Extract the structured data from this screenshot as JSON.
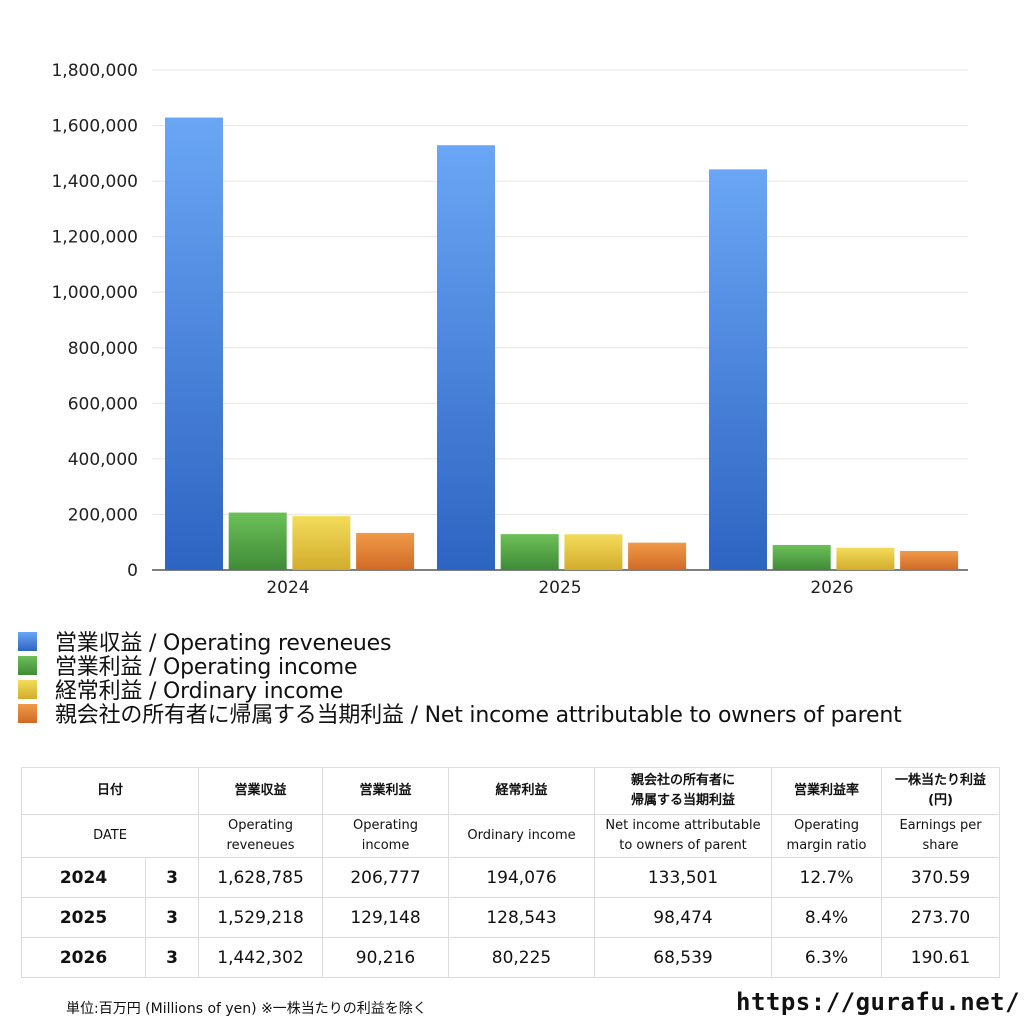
{
  "chart_data": {
    "type": "bar",
    "categories": [
      "2024",
      "2025",
      "2026"
    ],
    "ylim": [
      0,
      1800000
    ],
    "yticks": [
      "0",
      "200,000",
      "400,000",
      "600,000",
      "800,000",
      "1,000,000",
      "1,200,000",
      "1,400,000",
      "1,600,000",
      "1,800,000"
    ],
    "grid": true,
    "legend_position": "bottom",
    "series": [
      {
        "name": "営業収益 / Operating reveneues",
        "values": [
          1628785,
          1529218,
          1442302
        ],
        "color": "#4a86e8"
      },
      {
        "name": "営業利益 / Operating income",
        "values": [
          206777,
          129148,
          90216
        ],
        "color": "#55a845"
      },
      {
        "name": "経常利益 / Ordinary income",
        "values": [
          194076,
          128543,
          80225
        ],
        "color": "#e3c43c"
      },
      {
        "name": "親会社の所有者に帰属する当期利益 / Net income attributable to owners of parent",
        "values": [
          133501,
          98474,
          68539
        ],
        "color": "#e07f33"
      }
    ]
  },
  "table": {
    "headers_jp": [
      "日付",
      "営業収益",
      "営業利益",
      "経常利益",
      "親会社の所有者に\n帰属する当期利益",
      "営業利益率",
      "一株当たり利益\n(円)"
    ],
    "headers_en": [
      "DATE",
      "Operating\nreveneues",
      "Operating\nincome",
      "Ordinary income",
      "Net income attributable\nto owners of parent",
      "Operating\nmargin ratio",
      "Earnings per\nshare"
    ],
    "rows": [
      {
        "year": "2024",
        "month": "3",
        "rev": "1,628,785",
        "op": "206,777",
        "ord": "194,076",
        "net": "133,501",
        "margin": "12.7%",
        "eps": "370.59"
      },
      {
        "year": "2025",
        "month": "3",
        "rev": "1,529,218",
        "op": "129,148",
        "ord": "128,543",
        "net": "98,474",
        "margin": "8.4%",
        "eps": "273.70"
      },
      {
        "year": "2026",
        "month": "3",
        "rev": "1,442,302",
        "op": "90,216",
        "ord": "80,225",
        "net": "68,539",
        "margin": "6.3%",
        "eps": "190.61"
      }
    ]
  },
  "footnote": "単位:百万円 (Millions of yen) ※一株当たりの利益を除く",
  "site": "https://gurafu.net/"
}
